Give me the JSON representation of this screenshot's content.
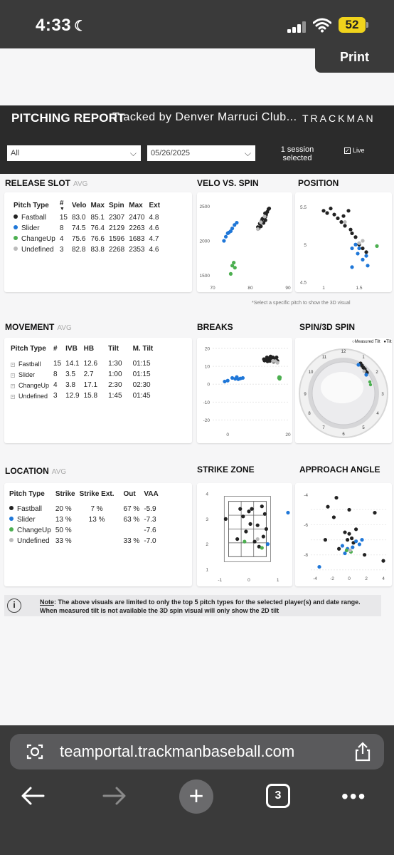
{
  "status": {
    "time": "4:33",
    "battery": "52"
  },
  "print_label": "Print",
  "header": {
    "title": "PITCHING REPORT",
    "tracked_by": "Tracked by Denver Marruci Club...",
    "brand": "TRACKMAN",
    "filter_value": "All",
    "date_value": "05/26/2025",
    "session_line1": "1 session",
    "session_line2": "selected",
    "live_label": "Live"
  },
  "colors": {
    "fastball": "#222222",
    "slider": "#1f77d8",
    "changeup": "#4caf50",
    "undefined": "#bbbbbb"
  },
  "release": {
    "title": "RELEASE SLOT",
    "avg": "AVG",
    "headers": [
      "Pitch Type",
      "#",
      "Velo",
      "Max",
      "Spin",
      "Max",
      "Ext"
    ],
    "rows": [
      [
        "Fastball",
        "15",
        "83.0",
        "85.1",
        "2307",
        "2470",
        "4.8"
      ],
      [
        "Slider",
        "8",
        "74.5",
        "76.4",
        "2129",
        "2263",
        "4.6"
      ],
      [
        "ChangeUp",
        "4",
        "75.6",
        "76.6",
        "1596",
        "1683",
        "4.7"
      ],
      [
        "Undefined",
        "3",
        "82.8",
        "83.8",
        "2268",
        "2353",
        "4.6"
      ]
    ]
  },
  "velo_title": "VELO VS. SPIN",
  "position_title": "POSITION",
  "select_note": "*Select a specific pitch to show the 3D visual",
  "movement": {
    "title": "MOVEMENT",
    "avg": "AVG",
    "headers": [
      "Pitch Type",
      "#",
      "IVB",
      "HB",
      "Tilt",
      "M. Tilt"
    ],
    "rows": [
      [
        "Fastball",
        "15",
        "14.1",
        "12.6",
        "1:30",
        "01:15"
      ],
      [
        "Slider",
        "8",
        "3.5",
        "2.7",
        "1:00",
        "01:15"
      ],
      [
        "ChangeUp",
        "4",
        "3.8",
        "17.1",
        "2:30",
        "02:30"
      ],
      [
        "Undefined",
        "3",
        "12.9",
        "15.8",
        "1:45",
        "01:45"
      ]
    ]
  },
  "breaks_title": "BREAKS",
  "spin_title": "SPIN/3D SPIN",
  "spin_legend": {
    "measured": "Measured Tilt",
    "actual": "Tilt"
  },
  "location": {
    "title": "LOCATION",
    "avg": "AVG",
    "headers": [
      "Pitch Type",
      "Strike",
      "Strike Ext.",
      "Out",
      "VAA"
    ],
    "rows": [
      [
        "Fastball",
        "20 %",
        "7 %",
        "67 %",
        "-5.9"
      ],
      [
        "Slider",
        "13 %",
        "13 %",
        "63 %",
        "-7.3"
      ],
      [
        "ChangeUp",
        "50 %",
        "",
        "",
        "-7.6"
      ],
      [
        "Undefined",
        "33 %",
        "",
        "33 %",
        "-7.0"
      ]
    ]
  },
  "strike_zone_title": "STRIKE ZONE",
  "approach_title": "APPROACH ANGLE",
  "note": {
    "label": "Note",
    "line1": ": The above visuals are limited to only the top 5 pitch types for the selected player(s) and date range.",
    "line2": "When measured tilt is not available the 3D spin visual will only show the 2D tilt"
  },
  "browser": {
    "url": "teamportal.trackmanbaseball.com",
    "tabs": "3"
  },
  "chart_data": [
    {
      "type": "scatter",
      "title": "VELO VS. SPIN",
      "xlim": [
        70,
        90
      ],
      "ylim": [
        1400,
        2600
      ],
      "xticks": [
        70,
        80,
        90
      ],
      "yticks": [
        1500,
        2000,
        2500
      ],
      "series": [
        {
          "name": "Fastball",
          "points": [
            [
              82,
              2200
            ],
            [
              82.5,
              2250
            ],
            [
              83,
              2290
            ],
            [
              83.2,
              2320
            ],
            [
              83.5,
              2260
            ],
            [
              84,
              2350
            ],
            [
              84.2,
              2380
            ],
            [
              84.5,
              2420
            ],
            [
              84.8,
              2460
            ],
            [
              85,
              2470
            ],
            [
              82.8,
              2210
            ],
            [
              83.6,
              2330
            ],
            [
              84,
              2300
            ],
            [
              82.2,
              2180
            ],
            [
              83.9,
              2400
            ]
          ]
        },
        {
          "name": "Slider",
          "points": [
            [
              73,
              2000
            ],
            [
              73.5,
              2060
            ],
            [
              74,
              2110
            ],
            [
              74.3,
              2120
            ],
            [
              74.8,
              2140
            ],
            [
              75.2,
              2180
            ],
            [
              75.8,
              2230
            ],
            [
              76.4,
              2263
            ]
          ]
        },
        {
          "name": "ChangeUp",
          "points": [
            [
              74.8,
              1520
            ],
            [
              75.2,
              1640
            ],
            [
              75.6,
              1683
            ],
            [
              75.9,
              1610
            ]
          ]
        },
        {
          "name": "Undefined",
          "points": [
            [
              82,
              2170
            ],
            [
              82.8,
              2270
            ],
            [
              83.8,
              2353
            ]
          ]
        }
      ]
    },
    {
      "type": "scatter",
      "title": "POSITION",
      "xlim": [
        0.8,
        1.9
      ],
      "ylim": [
        4.5,
        5.6
      ],
      "xticks": [
        1.0,
        1.5
      ],
      "yticks": [
        4.5,
        5.0,
        5.5
      ],
      "series": [
        {
          "name": "Fastball",
          "points": [
            [
              1.0,
              5.45
            ],
            [
              1.05,
              5.42
            ],
            [
              1.1,
              5.48
            ],
            [
              1.15,
              5.4
            ],
            [
              1.2,
              5.35
            ],
            [
              1.25,
              5.3
            ],
            [
              1.28,
              5.38
            ],
            [
              1.3,
              5.25
            ],
            [
              1.35,
              5.45
            ],
            [
              1.38,
              5.2
            ],
            [
              1.4,
              5.15
            ],
            [
              1.45,
              5.1
            ],
            [
              1.5,
              5.0
            ],
            [
              1.55,
              4.95
            ],
            [
              1.6,
              4.9
            ]
          ]
        },
        {
          "name": "Slider",
          "points": [
            [
              1.4,
              4.95
            ],
            [
              1.45,
              5.0
            ],
            [
              1.48,
              4.88
            ],
            [
              1.5,
              4.95
            ],
            [
              1.55,
              4.8
            ],
            [
              1.62,
              4.72
            ],
            [
              1.4,
              4.7
            ],
            [
              1.6,
              4.85
            ]
          ]
        },
        {
          "name": "ChangeUp",
          "points": [
            [
              1.75,
              4.98
            ]
          ]
        },
        {
          "name": "Undefined",
          "points": [
            [
              1.3,
              5.3
            ],
            [
              1.5,
              5.02
            ],
            [
              1.55,
              5.05
            ]
          ]
        }
      ]
    },
    {
      "type": "scatter",
      "title": "BREAKS",
      "xlim": [
        -5,
        20
      ],
      "ylim": [
        -25,
        22
      ],
      "xticks": [
        0,
        20
      ],
      "yticks": [
        -20,
        -10,
        0,
        10,
        20
      ],
      "series": [
        {
          "name": "Fastball",
          "points": [
            [
              12,
              14
            ],
            [
              12.5,
              13.5
            ],
            [
              13,
              15
            ],
            [
              13.5,
              14.5
            ],
            [
              14,
              13
            ],
            [
              14.5,
              14
            ],
            [
              15,
              15
            ],
            [
              15.5,
              13.5
            ],
            [
              16,
              14
            ],
            [
              16.5,
              13
            ],
            [
              13.2,
              12.8
            ],
            [
              14.2,
              15.5
            ],
            [
              15.2,
              12.6
            ],
            [
              12.2,
              13.2
            ],
            [
              16.2,
              15
            ]
          ]
        },
        {
          "name": "Slider",
          "points": [
            [
              0,
              2
            ],
            [
              1.5,
              3.5
            ],
            [
              2.5,
              3
            ],
            [
              3,
              4
            ],
            [
              3.5,
              2.8
            ],
            [
              4.2,
              3.2
            ],
            [
              5,
              3.5
            ],
            [
              -1,
              1.5
            ]
          ]
        },
        {
          "name": "ChangeUp",
          "points": [
            [
              17,
              3.5
            ],
            [
              17.1,
              4
            ],
            [
              17.2,
              3
            ],
            [
              17.3,
              3.8
            ]
          ]
        },
        {
          "name": "Undefined",
          "points": [
            [
              15,
              13
            ],
            [
              15.8,
              12.9
            ],
            [
              16.5,
              12
            ]
          ]
        }
      ]
    },
    {
      "type": "scatter",
      "title": "STRIKE ZONE",
      "xlim": [
        -1.3,
        1.4
      ],
      "ylim": [
        0.8,
        4.2
      ],
      "xticks": [
        -1,
        0,
        1
      ],
      "yticks": [
        1,
        2,
        3,
        4
      ],
      "series": [
        {
          "name": "Fastball",
          "points": [
            [
              -0.8,
              3.0
            ],
            [
              -0.3,
              3.4
            ],
            [
              0,
              3.3
            ],
            [
              0.1,
              3.4
            ],
            [
              0.45,
              3.5
            ],
            [
              -0.1,
              2.5
            ],
            [
              0.5,
              2.3
            ],
            [
              0.2,
              2.1
            ],
            [
              -0.4,
              2.2
            ],
            [
              0.35,
              1.9
            ],
            [
              0.6,
              2.6
            ],
            [
              -0.2,
              3.1
            ],
            [
              0.55,
              3.2
            ],
            [
              0.05,
              2.8
            ],
            [
              0.3,
              2.75
            ]
          ]
        },
        {
          "name": "Slider",
          "points": [
            [
              1.35,
              3.25
            ],
            [
              0.65,
              2.0
            ]
          ]
        },
        {
          "name": "ChangeUp",
          "points": [
            [
              -0.15,
              2.1
            ],
            [
              0.45,
              1.85
            ]
          ]
        },
        {
          "name": "Undefined",
          "points": [
            [
              0.3,
              2.2
            ]
          ]
        }
      ]
    },
    {
      "type": "scatter",
      "title": "APPROACH ANGLE",
      "xlim": [
        -4.5,
        4.5
      ],
      "ylim": [
        -9.2,
        -3.7
      ],
      "xticks": [
        -4,
        -2,
        0,
        2,
        4
      ],
      "yticks": [
        -4,
        -6,
        -8
      ],
      "series": [
        {
          "name": "Fastball",
          "points": [
            [
              -1.5,
              -4.2
            ],
            [
              -2.5,
              -4.8
            ],
            [
              0,
              -5.0
            ],
            [
              -1.8,
              -5.5
            ],
            [
              3,
              -5.2
            ],
            [
              -0.5,
              -6.5
            ],
            [
              0,
              -6.6
            ],
            [
              0.3,
              -6.9
            ],
            [
              -0.2,
              -7.0
            ],
            [
              0.5,
              -7.2
            ],
            [
              -1.2,
              -7.6
            ],
            [
              1.8,
              -8.0
            ],
            [
              4,
              -8.4
            ],
            [
              -2.8,
              -7.0
            ],
            [
              0.8,
              -6.3
            ]
          ]
        },
        {
          "name": "Slider",
          "points": [
            [
              -3.5,
              -8.8
            ],
            [
              -0.8,
              -7.4
            ],
            [
              -0.2,
              -7.6
            ],
            [
              0.4,
              -7.5
            ],
            [
              0.8,
              -7.1
            ],
            [
              1.2,
              -7.3
            ],
            [
              -0.5,
              -7.9
            ],
            [
              1.5,
              -7.0
            ]
          ]
        },
        {
          "name": "ChangeUp",
          "points": [
            [
              -0.3,
              -7.7
            ],
            [
              0.2,
              -7.8
            ]
          ]
        },
        {
          "name": "Undefined",
          "points": [
            [
              0.1,
              -7.7
            ]
          ]
        }
      ]
    }
  ]
}
